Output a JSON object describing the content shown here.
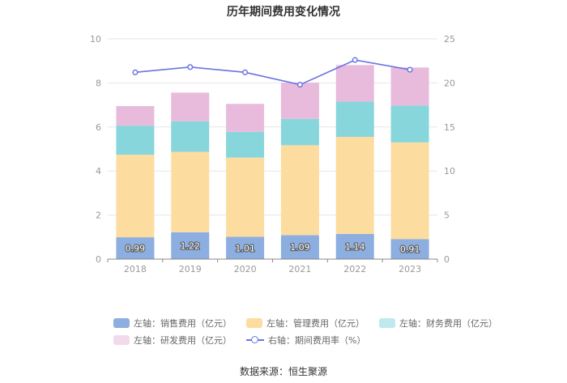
{
  "chart_data": {
    "type": "bar",
    "title": "历年期间费用变化情况",
    "categories": [
      "2018",
      "2019",
      "2020",
      "2021",
      "2022",
      "2023"
    ],
    "series": [
      {
        "name": "左轴：销售费用（亿元）",
        "axis": "left",
        "kind": "bar",
        "color": "#8caee0",
        "values": [
          0.99,
          1.22,
          1.01,
          1.09,
          1.14,
          0.91
        ],
        "show_labels": true
      },
      {
        "name": "左轴：管理费用（亿元）",
        "axis": "left",
        "kind": "bar",
        "color": "#fddca0",
        "values": [
          3.75,
          3.65,
          3.6,
          4.08,
          4.41,
          4.39
        ]
      },
      {
        "name": "左轴：财务费用（亿元）",
        "axis": "left",
        "kind": "bar",
        "color": "#87d6dc",
        "values": [
          1.32,
          1.39,
          1.17,
          1.2,
          1.6,
          1.67
        ]
      },
      {
        "name": "左轴：研发费用（亿元）",
        "axis": "left",
        "kind": "bar",
        "color": "#e8bbdc",
        "values": [
          0.89,
          1.3,
          1.27,
          1.64,
          1.66,
          1.73
        ]
      },
      {
        "name": "右轴：期间费用率（%）",
        "axis": "right",
        "kind": "line",
        "color": "#6b74e0",
        "values": [
          21.2,
          21.8,
          21.2,
          19.8,
          22.6,
          21.5
        ]
      }
    ],
    "y_left": {
      "min": 0,
      "max": 10,
      "ticks": [
        0,
        2,
        4,
        6,
        8,
        10
      ]
    },
    "y_right": {
      "min": 0,
      "max": 25,
      "ticks": [
        0,
        5,
        10,
        15,
        20,
        25
      ]
    },
    "grid": true,
    "legend_position": "bottom"
  },
  "source": "数据来源：恒生聚源"
}
